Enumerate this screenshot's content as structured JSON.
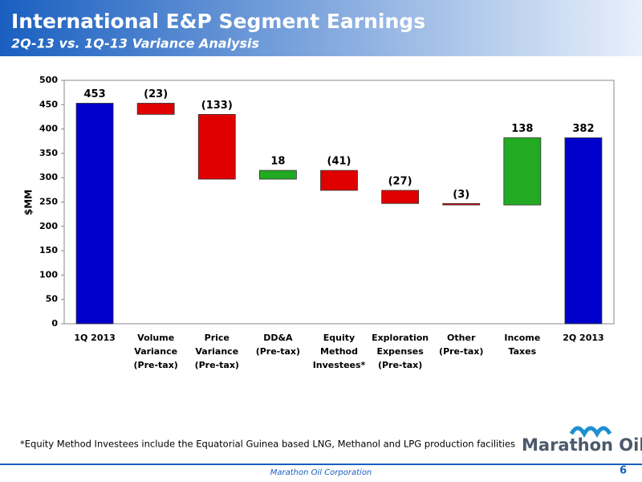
{
  "slide": {
    "title": "International E&P Segment Earnings",
    "subtitle": "2Q-13 vs. 1Q-13 Variance Analysis",
    "footnote": "*Equity Method Investees include the Equatorial Guinea based LNG, Methanol and LPG production facilities",
    "footer": "Marathon Oil Corporation",
    "page_number": "6",
    "logo": "Marathon Oil"
  },
  "chart_data": {
    "type": "waterfall",
    "y_label": "$MM",
    "categories": [
      "1Q 2013",
      "Volume Variance (Pre-tax)",
      "Price Variance (Pre-tax)",
      "DD&A (Pre-tax)",
      "Equity Method Investees*",
      "Exploration Expenses (Pre-tax)",
      "Other (Pre-tax)",
      "Income Taxes",
      "2Q 2013"
    ],
    "values": [
      453,
      -23,
      -133,
      18,
      -41,
      -27,
      -3,
      138,
      382
    ],
    "value_labels": [
      "453",
      "(23)",
      "(133)",
      "18",
      "(41)",
      "(27)",
      "(3)",
      "138",
      "382"
    ],
    "measure": [
      "absolute",
      "relative",
      "relative",
      "relative",
      "relative",
      "relative",
      "relative",
      "relative",
      "absolute"
    ],
    "colors": {
      "total": "#0000cc",
      "increase": "#22aa22",
      "decrease": "#e00000"
    },
    "ylim": [
      0,
      500
    ],
    "yticks": [
      0,
      50,
      100,
      150,
      200,
      250,
      300,
      350,
      400,
      450,
      500
    ]
  }
}
